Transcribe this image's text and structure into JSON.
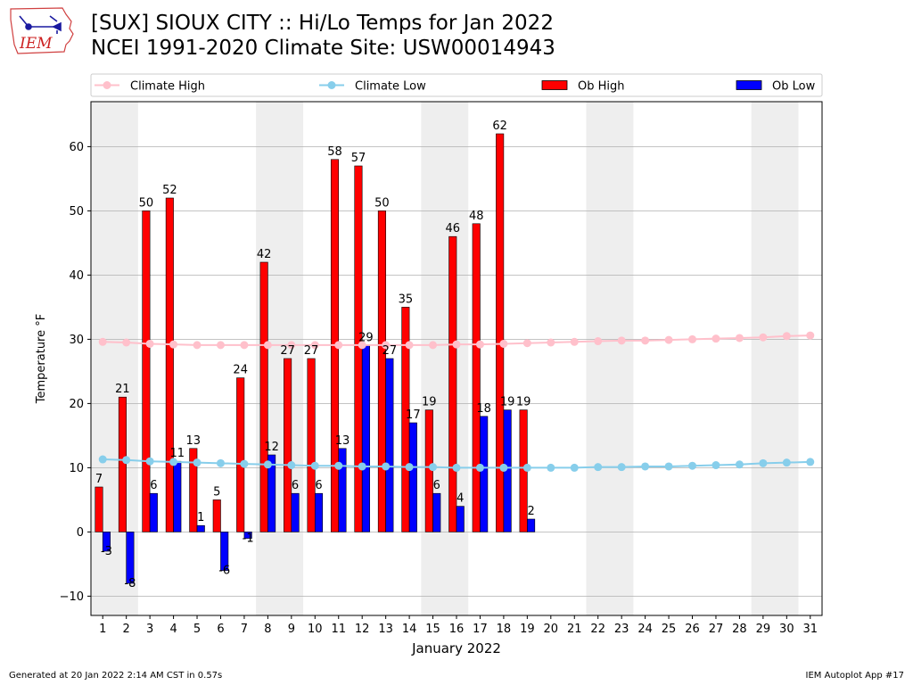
{
  "header": {
    "title_line1": "[SUX] SIOUX CITY :: Hi/Lo Temps for Jan 2022",
    "title_line2": "NCEI 1991-2020 Climate Site: USW00014943",
    "logo_text": "IEM"
  },
  "footer": {
    "generated": "Generated at 20 Jan 2022 2:14 AM CST in 0.57s",
    "app": "IEM Autoplot App #17"
  },
  "chart_data": {
    "type": "bar",
    "xlabel": "January 2022",
    "ylabel": "Temperature °F",
    "ylim": [
      -13,
      67
    ],
    "yticks": [
      -10,
      0,
      10,
      20,
      30,
      40,
      50,
      60
    ],
    "xlim": [
      0.5,
      31.5
    ],
    "x": [
      1,
      2,
      3,
      4,
      5,
      6,
      7,
      8,
      9,
      10,
      11,
      12,
      13,
      14,
      15,
      16,
      17,
      18,
      19,
      20,
      21,
      22,
      23,
      24,
      25,
      26,
      27,
      28,
      29,
      30,
      31
    ],
    "grid": "horizontal",
    "legend_position": "top",
    "weekend_shading": [
      [
        1,
        2
      ],
      [
        8,
        9
      ],
      [
        15,
        16
      ],
      [
        22,
        23
      ],
      [
        29,
        30
      ]
    ],
    "legend": [
      {
        "label": "Climate High",
        "kind": "line",
        "color": "#ffc0cb"
      },
      {
        "label": "Climate Low",
        "kind": "line",
        "color": "#87ceeb"
      },
      {
        "label": "Ob High",
        "kind": "bar",
        "color": "#ff0000"
      },
      {
        "label": "Ob Low",
        "kind": "bar",
        "color": "#0000ff"
      }
    ],
    "ob_high": [
      7,
      21,
      50,
      52,
      13,
      5,
      24,
      42,
      27,
      27,
      58,
      57,
      50,
      35,
      19,
      46,
      48,
      62,
      19
    ],
    "ob_low": [
      -3,
      -8,
      6,
      11,
      1,
      -6,
      -1,
      12,
      6,
      6,
      13,
      29,
      27,
      17,
      6,
      4,
      18,
      19,
      2
    ],
    "climate_high": [
      29.6,
      29.5,
      29.3,
      29.2,
      29.1,
      29.1,
      29.1,
      29.1,
      29.1,
      29.1,
      29.1,
      29.1,
      29.1,
      29.1,
      29.1,
      29.2,
      29.2,
      29.3,
      29.4,
      29.5,
      29.6,
      29.7,
      29.8,
      29.8,
      29.9,
      30.0,
      30.1,
      30.2,
      30.3,
      30.5,
      30.6
    ],
    "climate_low": [
      11.3,
      11.2,
      11.0,
      10.9,
      10.8,
      10.7,
      10.6,
      10.5,
      10.4,
      10.3,
      10.3,
      10.2,
      10.2,
      10.1,
      10.1,
      10.0,
      10.0,
      10.0,
      10.0,
      10.0,
      10.0,
      10.1,
      10.1,
      10.2,
      10.2,
      10.3,
      10.4,
      10.5,
      10.7,
      10.8,
      10.9
    ],
    "colors": {
      "ob_high": "#ff0000",
      "ob_low": "#0000ff",
      "climate_high": "#ffc0cb",
      "climate_low": "#87ceeb",
      "shade": "#eeeeee",
      "grid": "#b0b0b0"
    }
  }
}
